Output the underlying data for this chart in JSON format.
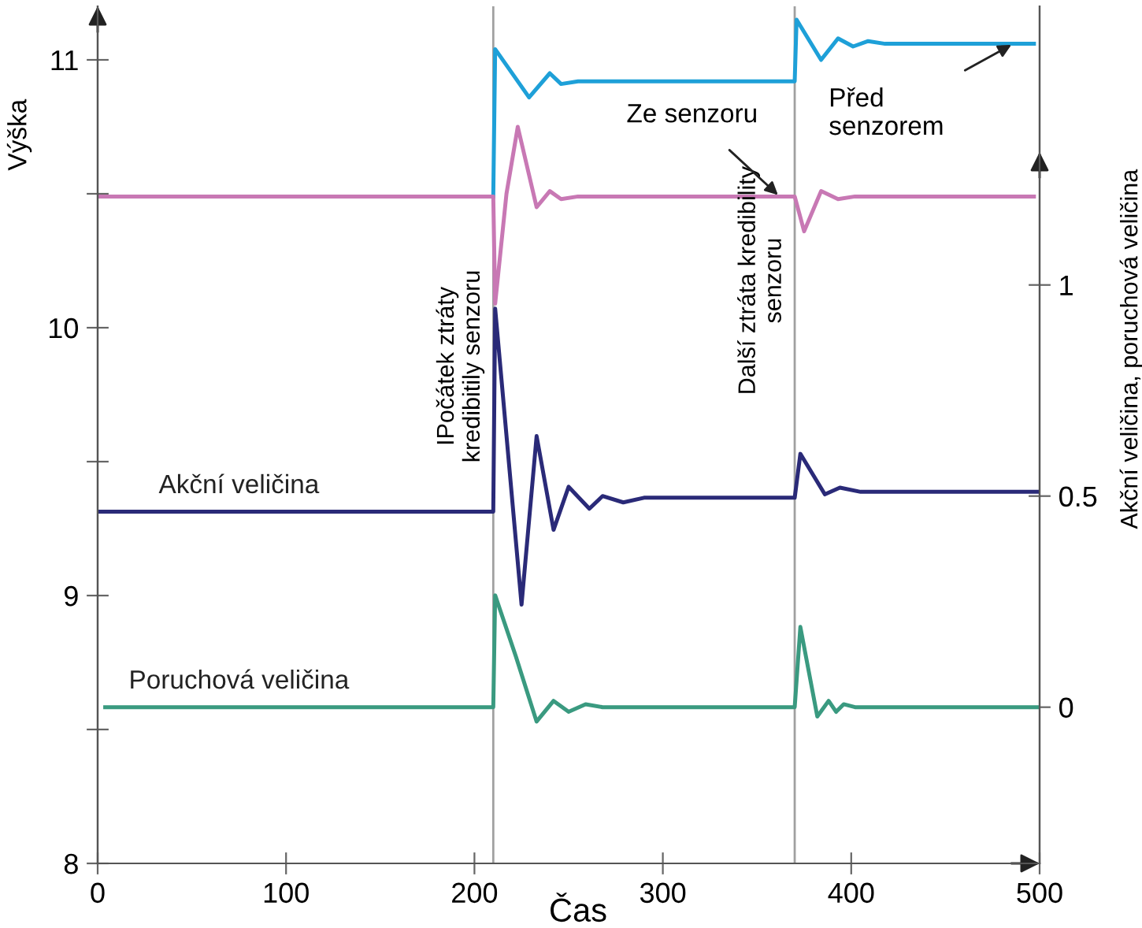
{
  "chart_data": {
    "type": "line",
    "xlabel": "Čas",
    "ylabel": "Výška",
    "y2label": "Akční veličina, poruchová veličina",
    "xlim": [
      0,
      500
    ],
    "xticks": [
      0,
      100,
      200,
      300,
      400,
      500
    ],
    "ylim": [
      8,
      11.2
    ],
    "yticks": [
      8,
      {
        "value": 8.5,
        "label": null
      },
      9,
      {
        "value": 9.5,
        "label": null
      },
      10,
      {
        "value": 10.5,
        "label": null
      },
      11
    ],
    "y2lim": [
      -0.37,
      1.66
    ],
    "y2ticks": [
      0,
      0.5,
      1
    ],
    "grid": false,
    "legend": false,
    "ref_lines": [
      {
        "axis": "x",
        "value": 210,
        "label": "IPočátek ztráty\nkredibitily senzoru",
        "color": "#a0a0a0"
      },
      {
        "axis": "x",
        "value": 370,
        "label": "Další ztráta kredibility\nsenzoru",
        "color": "#a0a0a0"
      }
    ],
    "annotations": [
      {
        "text": "Ze senzoru",
        "x": 362,
        "y": 10.49
      },
      {
        "text": "Před\nsenzorem",
        "x": 486,
        "y": 11.06
      }
    ],
    "series": [
      {
        "color": "#1ea0d8",
        "x": [
          210,
          211,
          229,
          240,
          246,
          255,
          370,
          371,
          384,
          393,
          401,
          409,
          418,
          497
        ],
        "values": [
          10.49,
          11.04,
          10.86,
          10.95,
          10.91,
          10.92,
          10.92,
          11.15,
          11.0,
          11.08,
          11.05,
          11.07,
          11.06,
          11.06
        ]
      },
      {
        "color": "#c878b4",
        "x": [
          0,
          210,
          211,
          217,
          223,
          233,
          240,
          246,
          255,
          370,
          375,
          384,
          393,
          402,
          497
        ],
        "values": [
          10.49,
          10.49,
          10.09,
          10.5,
          10.75,
          10.45,
          10.51,
          10.48,
          10.49,
          10.49,
          10.36,
          10.51,
          10.48,
          10.49,
          10.49
        ]
      },
      {
        "name": "Akční veličina",
        "color": "#2a2a78",
        "axis": "y2",
        "x": [
          0,
          210,
          211,
          225,
          233,
          242,
          250,
          261,
          268,
          279,
          290,
          370,
          373,
          386,
          394,
          405,
          500
        ],
        "values": [
          0.463,
          0.463,
          0.944,
          0.243,
          0.642,
          0.42,
          0.522,
          0.47,
          0.5,
          0.485,
          0.496,
          0.496,
          0.6,
          0.504,
          0.52,
          0.51,
          0.51
        ]
      },
      {
        "name": "Poruchová veličina",
        "color": "#3a9a80",
        "axis": "y2",
        "x": [
          4,
          210,
          211,
          222,
          233,
          242,
          250,
          259,
          268,
          370,
          373,
          382,
          388,
          392,
          396,
          402,
          500
        ],
        "values": [
          0,
          0,
          0.265,
          0.12,
          -0.034,
          0.015,
          -0.011,
          0.007,
          0,
          0,
          0.19,
          -0.022,
          0.015,
          -0.011,
          0.007,
          0,
          0
        ]
      }
    ]
  }
}
